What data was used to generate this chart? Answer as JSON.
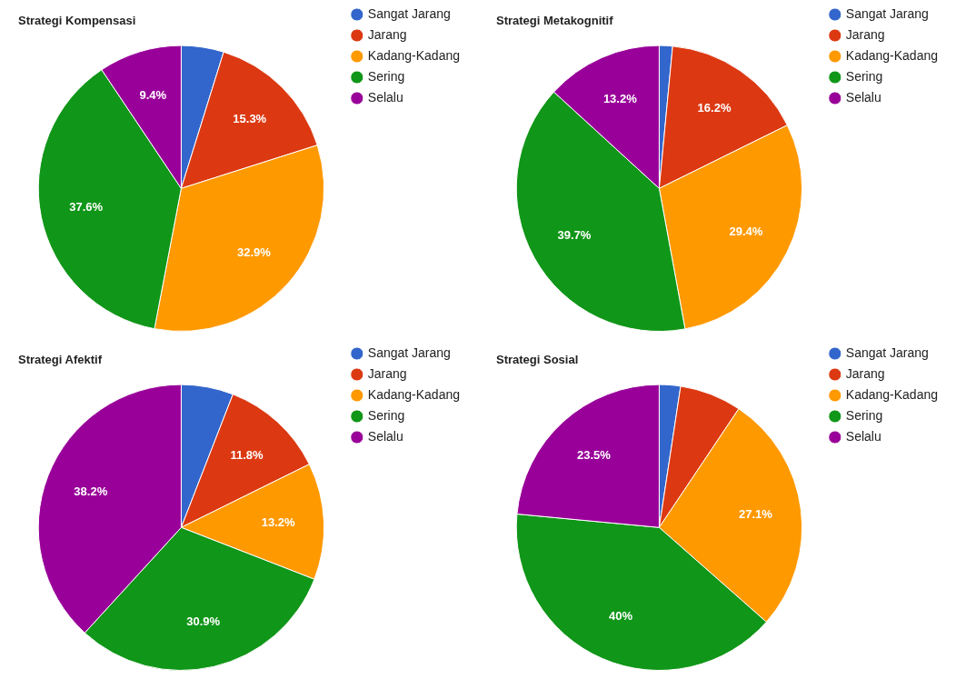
{
  "chart_data": [
    {
      "type": "pie",
      "title": "Strategi Kompensasi",
      "categories": [
        "Sangat Jarang",
        "Jarang",
        "Kadang-Kadang",
        "Sering",
        "Selalu"
      ],
      "values": [
        4.8,
        15.3,
        32.9,
        37.6,
        9.4
      ],
      "colors": [
        "#3366cc",
        "#dc3912",
        "#ff9900",
        "#109618",
        "#990099"
      ],
      "value_labels": [
        null,
        "15.3%",
        "32.9%",
        "37.6%",
        "9.4%"
      ],
      "legend": "right"
    },
    {
      "type": "pie",
      "title": "Strategi Metakognitif",
      "categories": [
        "Sangat Jarang",
        "Jarang",
        "Kadang-Kadang",
        "Sering",
        "Selalu"
      ],
      "values": [
        1.5,
        16.2,
        29.4,
        39.7,
        13.2
      ],
      "colors": [
        "#3366cc",
        "#dc3912",
        "#ff9900",
        "#109618",
        "#990099"
      ],
      "value_labels": [
        null,
        "16.2%",
        "29.4%",
        "39.7%",
        "13.2%"
      ],
      "legend": "right"
    },
    {
      "type": "pie",
      "title": "Strategi Afektif",
      "categories": [
        "Sangat Jarang",
        "Jarang",
        "Kadang-Kadang",
        "Sering",
        "Selalu"
      ],
      "values": [
        5.9,
        11.8,
        13.2,
        30.9,
        38.2
      ],
      "colors": [
        "#3366cc",
        "#dc3912",
        "#ff9900",
        "#109618",
        "#990099"
      ],
      "value_labels": [
        null,
        "11.8%",
        "13.2%",
        "30.9%",
        "38.2%"
      ],
      "legend": "right"
    },
    {
      "type": "pie",
      "title": "Strategi Sosial",
      "categories": [
        "Sangat Jarang",
        "Jarang",
        "Kadang-Kadang",
        "Sering",
        "Selalu"
      ],
      "values": [
        2.4,
        7.0,
        27.1,
        40,
        23.5
      ],
      "colors": [
        "#3366cc",
        "#dc3912",
        "#ff9900",
        "#109618",
        "#990099"
      ],
      "value_labels": [
        null,
        null,
        "27.1%",
        "40%",
        "23.5%"
      ],
      "legend": "right"
    }
  ]
}
